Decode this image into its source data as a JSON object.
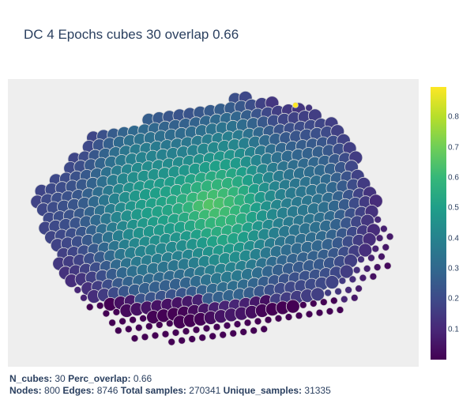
{
  "title": "DC 4 Epochs cubes 30 overlap 0.66",
  "colorbar": {
    "ticks": [
      "0.1",
      "0.2",
      "0.3",
      "0.4",
      "0.5",
      "0.6",
      "0.7",
      "0.8"
    ],
    "tick_values": [
      0.1,
      0.2,
      0.3,
      0.4,
      0.5,
      0.6,
      0.7,
      0.8
    ],
    "range": [
      0.0,
      0.9
    ],
    "colorscale": [
      "#440154",
      "#482878",
      "#3e4a89",
      "#31688e",
      "#26828e",
      "#1f9e89",
      "#35b779",
      "#6ece58",
      "#b5de2b",
      "#fde725"
    ]
  },
  "footer": {
    "n_cubes_label": "N_cubes:",
    "n_cubes": "30",
    "perc_overlap_label": "Perc_overlap:",
    "perc_overlap": "0.66",
    "nodes_label": "Nodes:",
    "nodes": "800",
    "edges_label": "Edges:",
    "edges": "8746",
    "total_samples_label": "Total samples:",
    "total_samples": "270341",
    "unique_samples_label": "Unique_samples:",
    "unique_samples": "31335"
  },
  "chart_data": {
    "type": "scatter",
    "title": "DC 4 Epochs cubes 30 overlap 0.66",
    "xlabel": "",
    "ylabel": "",
    "grid": false,
    "nodes": 800,
    "color_range": [
      0.0,
      0.9
    ],
    "colorscale": "Viridis",
    "description_shape": "hexagonal lattice of node markers; center values ~0.6, edges ~0.1-0.3, top-right peak ~0.9"
  }
}
